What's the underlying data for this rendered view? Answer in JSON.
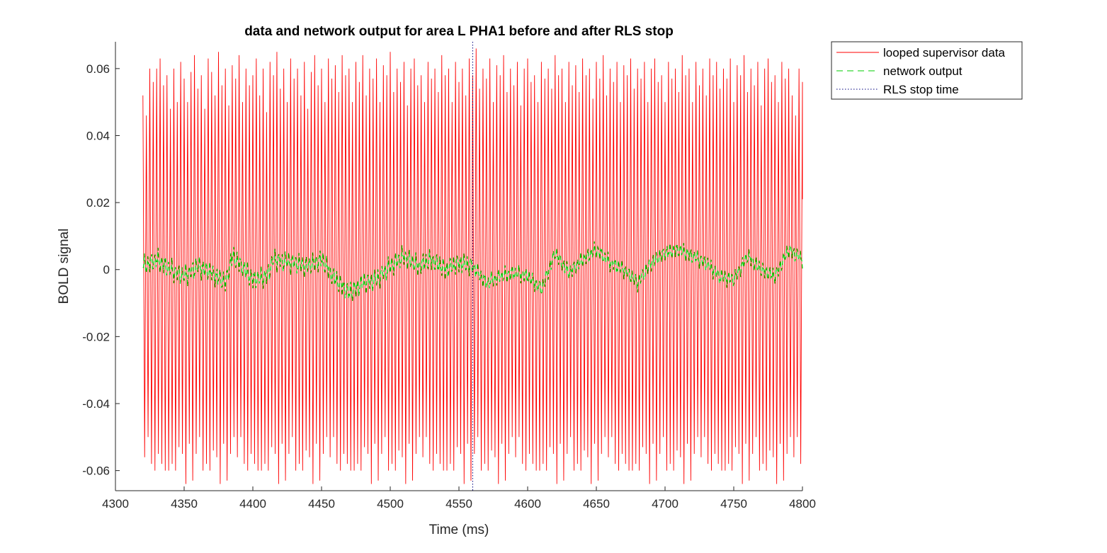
{
  "chart_data": {
    "type": "line",
    "title": "data and network output for area L PHA1 before and after RLS stop",
    "xlabel": "Time (ms)",
    "ylabel": "BOLD signal",
    "xlim": [
      4300,
      4800
    ],
    "ylim": [
      -0.066,
      0.068
    ],
    "xticks": [
      4300,
      4350,
      4400,
      4450,
      4500,
      4550,
      4600,
      4650,
      4700,
      4750,
      4800
    ],
    "yticks": [
      -0.06,
      -0.04,
      -0.02,
      0,
      0.02,
      0.04,
      0.06
    ],
    "xtick_labels": [
      "4300",
      "4350",
      "4400",
      "4450",
      "4500",
      "4550",
      "4600",
      "4650",
      "4700",
      "4750",
      "4800"
    ],
    "ytick_labels": [
      "-0.06",
      "-0.04",
      "-0.02",
      "0",
      "0.02",
      "0.04",
      "0.06"
    ],
    "grid": false,
    "legend_position": "outside-top-right",
    "rls_stop_time": 4560,
    "series": [
      {
        "name": "looped supervisor data",
        "color": "#ff0000",
        "style": "solid",
        "x_start": 4320,
        "x_end": 4800,
        "period": 2.5,
        "peak_amplitudes": [
          0.052,
          0.046,
          0.06,
          0.056,
          0.06,
          0.063,
          0.055,
          0.058,
          0.048,
          0.06,
          0.05,
          0.062,
          0.057,
          0.05,
          0.059,
          0.064,
          0.054,
          0.058,
          0.048,
          0.063,
          0.059,
          0.052,
          0.065,
          0.055,
          0.06,
          0.049,
          0.061,
          0.057,
          0.064,
          0.05,
          0.06,
          0.055,
          0.058,
          0.063,
          0.052,
          0.06,
          0.047,
          0.062,
          0.058,
          0.065,
          0.054,
          0.06,
          0.05,
          0.063,
          0.057,
          0.06,
          0.052,
          0.062,
          0.048,
          0.059,
          0.064,
          0.055,
          0.06,
          0.05,
          0.063,
          0.057,
          0.061,
          0.053,
          0.064,
          0.058,
          0.06,
          0.05,
          0.062,
          0.056,
          0.064,
          0.052,
          0.06,
          0.057,
          0.063,
          0.05,
          0.061,
          0.058,
          0.065,
          0.053,
          0.06,
          0.056,
          0.062,
          0.049,
          0.06,
          0.063,
          0.055,
          0.058,
          0.05,
          0.062,
          0.057,
          0.06,
          0.053,
          0.064,
          0.058,
          0.06,
          0.05,
          0.062,
          0.056,
          0.06,
          0.052,
          0.063,
          0.058,
          0.066,
          0.054,
          0.06,
          0.057,
          0.063,
          0.05,
          0.061,
          0.058,
          0.064,
          0.053,
          0.06,
          0.055,
          0.062,
          0.049,
          0.06,
          0.063,
          0.056,
          0.058,
          0.05,
          0.062,
          0.057,
          0.06,
          0.054,
          0.064,
          0.058,
          0.06,
          0.05,
          0.062,
          0.055,
          0.061,
          0.053,
          0.063,
          0.058,
          0.06,
          0.051,
          0.062,
          0.057,
          0.064,
          0.052,
          0.06,
          0.056,
          0.062,
          0.05,
          0.061,
          0.058,
          0.063,
          0.054,
          0.06,
          0.057,
          0.062,
          0.05,
          0.06,
          0.063,
          0.056,
          0.058,
          0.05,
          0.062,
          0.057,
          0.06,
          0.053,
          0.064,
          0.058,
          0.06,
          0.05,
          0.062,
          0.055,
          0.06,
          0.052,
          0.063,
          0.058,
          0.062,
          0.054,
          0.06,
          0.057,
          0.063,
          0.05,
          0.061,
          0.058,
          0.064,
          0.053,
          0.06,
          0.055,
          0.062,
          0.049,
          0.06,
          0.063,
          0.056,
          0.058,
          0.05,
          0.062,
          0.057,
          0.06
        ]
      },
      {
        "name": "network output",
        "color": "#00cc00",
        "style": "dashed",
        "x_start": 4320,
        "x_end": 4800,
        "slow_trend": [
          [
            4320,
            0.001
          ],
          [
            4330,
            0.003
          ],
          [
            4340,
            0.0
          ],
          [
            4350,
            -0.002
          ],
          [
            4360,
            0.001
          ],
          [
            4370,
            -0.001
          ],
          [
            4380,
            -0.004
          ],
          [
            4385,
            0.004
          ],
          [
            4390,
            0.002
          ],
          [
            4400,
            -0.003
          ],
          [
            4410,
            -0.002
          ],
          [
            4415,
            0.003
          ],
          [
            4430,
            0.002
          ],
          [
            4440,
            0.001
          ],
          [
            4450,
            0.003
          ],
          [
            4460,
            -0.003
          ],
          [
            4470,
            -0.007
          ],
          [
            4480,
            -0.004
          ],
          [
            4490,
            -0.003
          ],
          [
            4500,
            0.001
          ],
          [
            4510,
            0.004
          ],
          [
            4520,
            0.001
          ],
          [
            4530,
            0.003
          ],
          [
            4540,
            0.0
          ],
          [
            4550,
            0.002
          ],
          [
            4560,
            0.001
          ],
          [
            4570,
            -0.004
          ],
          [
            4580,
            -0.002
          ],
          [
            4590,
            -0.001
          ],
          [
            4600,
            -0.002
          ],
          [
            4610,
            -0.006
          ],
          [
            4620,
            0.005
          ],
          [
            4630,
            -0.001
          ],
          [
            4640,
            0.003
          ],
          [
            4650,
            0.006
          ],
          [
            4660,
            0.002
          ],
          [
            4670,
            0.0
          ],
          [
            4680,
            -0.004
          ],
          [
            4690,
            0.002
          ],
          [
            4700,
            0.005
          ],
          [
            4710,
            0.006
          ],
          [
            4720,
            0.004
          ],
          [
            4730,
            0.002
          ],
          [
            4740,
            -0.002
          ],
          [
            4750,
            -0.003
          ],
          [
            4760,
            0.004
          ],
          [
            4770,
            0.0
          ],
          [
            4780,
            -0.002
          ],
          [
            4790,
            0.006
          ],
          [
            4800,
            0.003
          ]
        ],
        "jitter_amplitude_before_stop": 0.004,
        "jitter_amplitude_after_stop": 0.003
      },
      {
        "name": "RLS stop time",
        "color": "#00007f",
        "style": "dotted",
        "x": 4560
      }
    ]
  }
}
